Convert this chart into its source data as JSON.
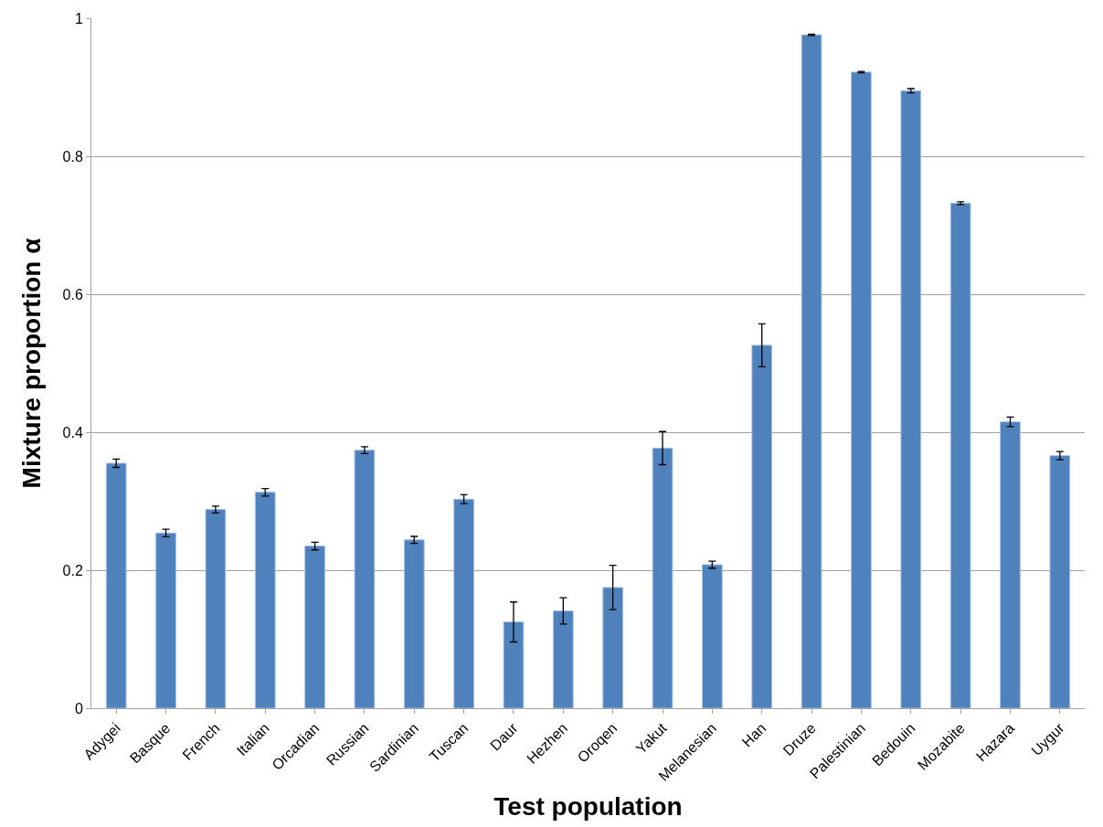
{
  "chart_data": {
    "type": "bar",
    "xlabel": "Test population",
    "ylabel": "Mixture proportion α",
    "categories": [
      "Adygei",
      "Basque",
      "French",
      "Italian",
      "Orcadian",
      "Russian",
      "Sardinian",
      "Tuscan",
      "Daur",
      "Hezhen",
      "Oroqen",
      "Yakut",
      "Melanesian",
      "Han",
      "Druze",
      "Palestinian",
      "Bedouin",
      "Mozabite",
      "Hazara",
      "Uygur"
    ],
    "values": [
      0.355,
      0.254,
      0.288,
      0.313,
      0.235,
      0.374,
      0.244,
      0.303,
      0.125,
      0.141,
      0.175,
      0.377,
      0.208,
      0.526,
      0.976,
      0.922,
      0.895,
      0.732,
      0.415,
      0.366
    ],
    "errors": [
      0.006,
      0.0055,
      0.005,
      0.0055,
      0.0055,
      0.005,
      0.005,
      0.0065,
      0.029,
      0.019,
      0.032,
      0.024,
      0.005,
      0.031,
      0.001,
      0.001,
      0.003,
      0.002,
      0.007,
      0.006
    ],
    "color": "#4f81bd",
    "ylim": [
      0,
      1
    ],
    "yticks": [
      0,
      {
        "value": 0.2,
        "label": "0.2"
      },
      {
        "value": 0.4,
        "label": "0.4"
      },
      {
        "value": 0.6,
        "label": "0.6"
      },
      {
        "value": 0.8,
        "label": "0.8"
      },
      1
    ],
    "grid": "y"
  }
}
